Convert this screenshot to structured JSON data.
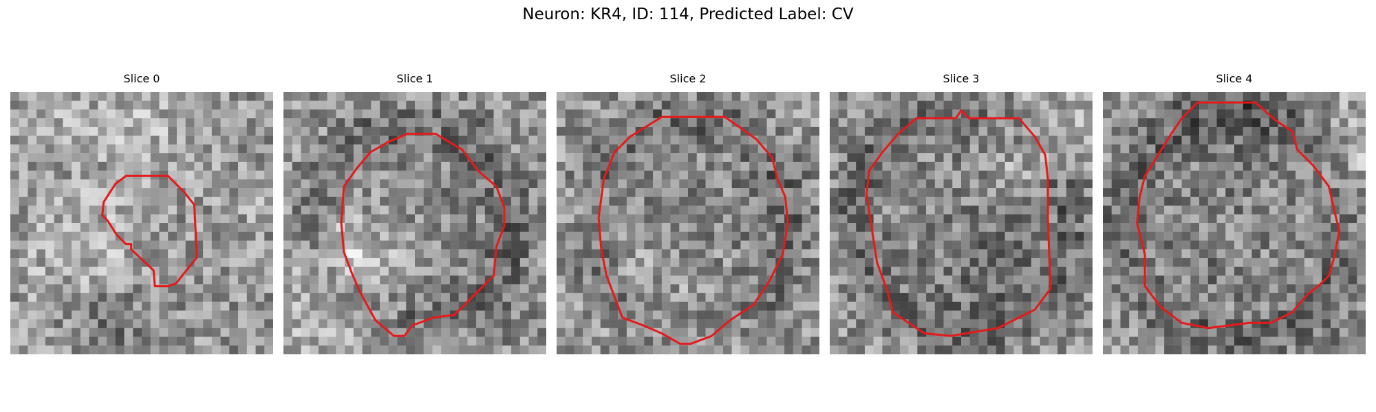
{
  "figure": {
    "title": "Neuron: KR4, ID: 114, Predicted Label: CV"
  },
  "panels": [
    {
      "title": "Slice 0"
    },
    {
      "title": "Slice 1"
    },
    {
      "title": "Slice 2"
    },
    {
      "title": "Slice 3"
    },
    {
      "title": "Slice 4"
    }
  ],
  "colors": {
    "contour": "#e41a1c",
    "background": "#ffffff",
    "text": "#000000"
  },
  "colormap": "grayscale"
}
